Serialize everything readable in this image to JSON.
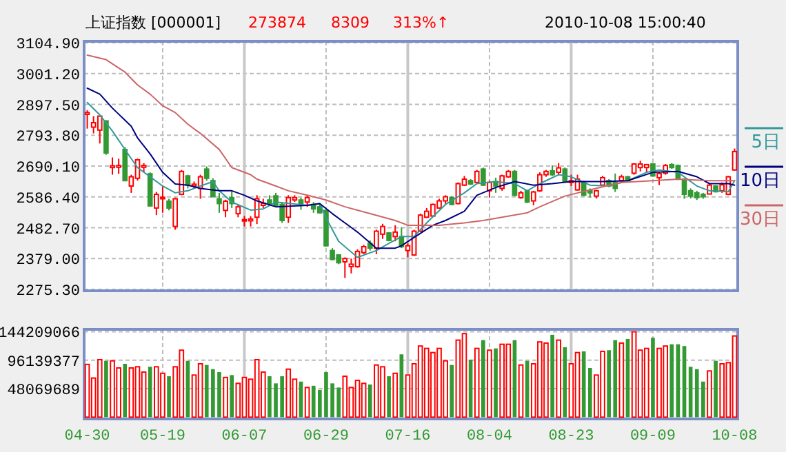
{
  "chart_data": [
    {
      "type": "candlestick",
      "title": "上证指数 [000001]",
      "annotations": [
        "273874",
        "8309",
        "313%↑",
        "2010-10-08 15:00:40"
      ],
      "categories": [
        null,
        null,
        null,
        null,
        null,
        null,
        null,
        null,
        null,
        null,
        null,
        null,
        null,
        null,
        null,
        null,
        null,
        null,
        null,
        null,
        null,
        null,
        null,
        null,
        null,
        null,
        null,
        null,
        null,
        null,
        null,
        null,
        null,
        null,
        null,
        null,
        null,
        null,
        null,
        null,
        null,
        null,
        null,
        null,
        null,
        null,
        null,
        null,
        null,
        null,
        null,
        null,
        null,
        null,
        null,
        null,
        null,
        null,
        null,
        null,
        null,
        null,
        null,
        null,
        null,
        null,
        null,
        null,
        null,
        null,
        null,
        null,
        null,
        null,
        null,
        null,
        null,
        null,
        null,
        null,
        null,
        null,
        null,
        null,
        null,
        null,
        null,
        null,
        null,
        null,
        null,
        null,
        null,
        null,
        null,
        null,
        null,
        null,
        null,
        null,
        null,
        null,
        null,
        null
      ],
      "ohlc": [
        [
          2864,
          2878,
          2816,
          2870
        ],
        [
          2821,
          2858,
          2800,
          2836
        ],
        [
          2811,
          2858,
          2766,
          2858
        ],
        [
          2842,
          2842,
          2728,
          2734
        ],
        [
          2685,
          2719,
          2661,
          2691
        ],
        [
          2686,
          2715,
          2664,
          2692
        ],
        [
          2746,
          2754,
          2641,
          2641
        ],
        [
          2623,
          2661,
          2600,
          2654
        ],
        [
          2649,
          2715,
          2641,
          2711
        ],
        [
          2686,
          2700,
          2669,
          2692
        ],
        [
          2664,
          2669,
          2556,
          2556
        ],
        [
          2549,
          2603,
          2525,
          2595
        ],
        [
          2580,
          2623,
          2533,
          2585
        ],
        [
          2572,
          2580,
          2541,
          2549
        ],
        [
          2487,
          2584,
          2476,
          2580
        ],
        [
          2595,
          2677,
          2592,
          2672
        ],
        [
          2657,
          2661,
          2615,
          2626
        ],
        [
          2623,
          2638,
          2615,
          2629
        ],
        [
          2615,
          2661,
          2580,
          2654
        ],
        [
          2680,
          2689,
          2641,
          2649
        ],
        [
          2641,
          2649,
          2587,
          2587
        ],
        [
          2580,
          2600,
          2533,
          2564
        ],
        [
          2541,
          2577,
          2518,
          2572
        ],
        [
          2584,
          2607,
          2549,
          2564
        ],
        [
          2530,
          2561,
          2518,
          2553
        ],
        [
          2507,
          2522,
          2487,
          2510
        ],
        [
          2506,
          2522,
          2487,
          2512
        ],
        [
          2518,
          2592,
          2495,
          2580
        ],
        [
          2558,
          2580,
          2549,
          2565
        ],
        [
          2576,
          2592,
          2558,
          2564
        ],
        [
          2590,
          2600,
          2553,
          2558
        ],
        [
          2561,
          2569,
          2499,
          2507
        ],
        [
          2518,
          2592,
          2499,
          2584
        ],
        [
          2576,
          2592,
          2569,
          2584
        ],
        [
          2576,
          2584,
          2543,
          2564
        ],
        [
          2569,
          2592,
          2553,
          2584
        ],
        [
          2561,
          2569,
          2533,
          2546
        ],
        [
          2553,
          2561,
          2530,
          2533
        ],
        [
          2541,
          2541,
          2419,
          2422
        ],
        [
          2406,
          2414,
          2373,
          2376
        ],
        [
          2391,
          2394,
          2360,
          2365
        ],
        [
          2368,
          2383,
          2314,
          2379
        ],
        [
          2352,
          2379,
          2329,
          2360
        ],
        [
          2352,
          2410,
          2348,
          2403
        ],
        [
          2399,
          2425,
          2394,
          2419
        ],
        [
          2430,
          2440,
          2406,
          2414
        ],
        [
          2414,
          2476,
          2394,
          2471
        ],
        [
          2461,
          2496,
          2445,
          2487
        ],
        [
          2465,
          2468,
          2437,
          2440
        ],
        [
          2453,
          2491,
          2437,
          2468
        ],
        [
          2453,
          2484,
          2414,
          2419
        ],
        [
          2406,
          2430,
          2383,
          2422
        ],
        [
          2391,
          2476,
          2388,
          2471
        ],
        [
          2471,
          2530,
          2468,
          2525
        ],
        [
          2518,
          2549,
          2515,
          2538
        ],
        [
          2522,
          2564,
          2519,
          2561
        ],
        [
          2549,
          2580,
          2546,
          2573
        ],
        [
          2573,
          2592,
          2561,
          2587
        ],
        [
          2584,
          2589,
          2558,
          2561
        ],
        [
          2564,
          2635,
          2561,
          2631
        ],
        [
          2626,
          2657,
          2623,
          2646
        ],
        [
          2641,
          2646,
          2626,
          2630
        ],
        [
          2635,
          2677,
          2630,
          2672
        ],
        [
          2680,
          2685,
          2623,
          2626
        ],
        [
          2607,
          2641,
          2584,
          2635
        ],
        [
          2638,
          2651,
          2600,
          2623
        ],
        [
          2615,
          2661,
          2607,
          2657
        ],
        [
          2654,
          2677,
          2651,
          2672
        ],
        [
          2672,
          2677,
          2589,
          2592
        ],
        [
          2584,
          2607,
          2580,
          2600
        ],
        [
          2607,
          2610,
          2566,
          2569
        ],
        [
          2573,
          2607,
          2558,
          2603
        ],
        [
          2607,
          2669,
          2603,
          2661
        ],
        [
          2661,
          2677,
          2654,
          2672
        ],
        [
          2674,
          2692,
          2657,
          2661
        ],
        [
          2669,
          2700,
          2661,
          2684
        ],
        [
          2680,
          2685,
          2635,
          2638
        ],
        [
          2635,
          2661,
          2623,
          2641
        ],
        [
          2610,
          2661,
          2607,
          2646
        ],
        [
          2635,
          2641,
          2589,
          2592
        ],
        [
          2607,
          2615,
          2584,
          2600
        ],
        [
          2589,
          2610,
          2581,
          2607
        ],
        [
          2626,
          2657,
          2623,
          2651
        ],
        [
          2641,
          2646,
          2619,
          2623
        ],
        [
          2635,
          2665,
          2603,
          2615
        ],
        [
          2641,
          2661,
          2635,
          2654
        ],
        [
          2654,
          2657,
          2638,
          2641
        ],
        [
          2666,
          2700,
          2661,
          2697
        ],
        [
          2685,
          2708,
          2672,
          2697
        ],
        [
          2685,
          2697,
          2669,
          2695
        ],
        [
          2697,
          2700,
          2654,
          2657
        ],
        [
          2651,
          2669,
          2626,
          2665
        ],
        [
          2666,
          2697,
          2661,
          2692
        ],
        [
          2695,
          2700,
          2681,
          2685
        ],
        [
          2692,
          2695,
          2643,
          2646
        ],
        [
          2646,
          2649,
          2580,
          2595
        ],
        [
          2607,
          2615,
          2581,
          2589
        ],
        [
          2600,
          2607,
          2576,
          2584
        ],
        [
          2595,
          2600,
          2580,
          2587
        ],
        [
          2596,
          2630,
          2595,
          2626
        ],
        [
          2623,
          2626,
          2601,
          2604
        ],
        [
          2607,
          2635,
          2600,
          2627
        ],
        [
          2595,
          2657,
          2592,
          2654
        ],
        [
          2677,
          2749,
          2674,
          2739
        ]
      ],
      "colors": [
        "#ff0000",
        "#ff0000",
        "#ff0000",
        "#339933",
        "#ff0000",
        "#ff0000",
        "#339933",
        "#ff0000",
        "#ff0000",
        "#ff0000",
        "#339933",
        "#ff0000",
        "#ff0000",
        "#339933",
        "#ff0000",
        "#ff0000",
        "#339933",
        "#ff0000",
        "#ff0000",
        "#339933",
        "#339933",
        "#339933",
        "#ff0000",
        "#339933",
        "#ff0000",
        "#ff0000",
        "#ff0000",
        "#ff0000",
        "#ff0000",
        "#339933",
        "#339933",
        "#339933",
        "#ff0000",
        "#ff0000",
        "#339933",
        "#ff0000",
        "#339933",
        "#339933",
        "#339933",
        "#339933",
        "#339933",
        "#ff0000",
        "#ff0000",
        "#ff0000",
        "#ff0000",
        "#339933",
        "#ff0000",
        "#ff0000",
        "#339933",
        "#ff0000",
        "#339933",
        "#ff0000",
        "#ff0000",
        "#ff0000",
        "#ff0000",
        "#ff0000",
        "#ff0000",
        "#ff0000",
        "#339933",
        "#ff0000",
        "#ff0000",
        "#339933",
        "#ff0000",
        "#339933",
        "#ff0000",
        "#339933",
        "#ff0000",
        "#ff0000",
        "#339933",
        "#ff0000",
        "#339933",
        "#ff0000",
        "#ff0000",
        "#ff0000",
        "#339933",
        "#ff0000",
        "#339933",
        "#ff0000",
        "#ff0000",
        "#339933",
        "#339933",
        "#ff0000",
        "#ff0000",
        "#339933",
        "#339933",
        "#ff0000",
        "#339933",
        "#ff0000",
        "#ff0000",
        "#ff0000",
        "#339933",
        "#ff0000",
        "#ff0000",
        "#339933",
        "#339933",
        "#339933",
        "#339933",
        "#339933",
        "#339933",
        "#ff0000",
        "#339933",
        "#ff0000",
        "#ff0000",
        "#ff0000"
      ],
      "series": [
        {
          "name": "5日",
          "type": "line",
          "color": "#339999",
          "values": [
            2904,
            null,
            2862,
            null,
            2808,
            null,
            null,
            2715,
            2685,
            null,
            2654,
            null,
            2623,
            null,
            2600,
            null,
            2607,
            null,
            2623,
            null,
            2638,
            2607,
            null,
            2569,
            null,
            null,
            2542,
            null,
            2546,
            null,
            2569,
            null,
            null,
            null,
            null,
            2558,
            null,
            2564,
            2515,
            null,
            2437,
            null,
            null,
            2383,
            null,
            null,
            2406,
            null,
            2430,
            null,
            2453,
            null,
            2453,
            null,
            2499,
            null,
            null,
            2561,
            null,
            null,
            2600,
            null,
            2631,
            null,
            null,
            2638,
            null,
            null,
            2631,
            null,
            2607,
            null,
            2631,
            null,
            null,
            2661,
            null,
            2654,
            null,
            null,
            2626,
            null,
            null,
            2623,
            null,
            null,
            2641,
            null,
            null,
            2669,
            null,
            2677,
            null,
            null,
            2669,
            null,
            null,
            2623,
            null,
            2607,
            null,
            null,
            2604,
            2641
          ]
        },
        {
          "name": "10日",
          "type": "line",
          "color": "#000080",
          "values": [
            2952,
            null,
            2932,
            null,
            2885,
            null,
            null,
            2824,
            2785,
            null,
            2731,
            null,
            2669,
            null,
            2630,
            null,
            2626,
            null,
            2615,
            null,
            null,
            2607,
            null,
            2607,
            null,
            2592,
            null,
            2573,
            null,
            null,
            2553,
            null,
            null,
            null,
            null,
            2558,
            null,
            2564,
            null,
            2530,
            null,
            2499,
            null,
            2468,
            null,
            null,
            2414,
            null,
            null,
            2414,
            2422,
            null,
            2450,
            null,
            null,
            2491,
            null,
            2507,
            null,
            null,
            2538,
            null,
            2592,
            null,
            null,
            2618,
            null,
            null,
            2638,
            null,
            null,
            2626,
            null,
            null,
            2631,
            null,
            null,
            2638,
            null,
            null,
            null,
            null,
            2638,
            null,
            null,
            null,
            2641,
            null,
            null,
            null,
            2669,
            null,
            null,
            null,
            2672,
            null,
            null,
            2654,
            null,
            2631,
            null,
            null,
            2631,
            2626
          ]
        },
        {
          "name": "30日",
          "type": "line",
          "color": "#cc6666",
          "values": [
            3063,
            null,
            null,
            3048,
            null,
            null,
            3006,
            null,
            2963,
            null,
            2932,
            null,
            2893,
            null,
            2870,
            null,
            2831,
            null,
            2800,
            null,
            null,
            2746,
            null,
            2685,
            null,
            null,
            2661,
            2646,
            null,
            null,
            2623,
            null,
            2607,
            null,
            null,
            2592,
            null,
            null,
            2576,
            null,
            null,
            2553,
            null,
            null,
            null,
            2530,
            null,
            null,
            null,
            2507,
            null,
            2491,
            null,
            null,
            null,
            null,
            2491,
            null,
            null,
            null,
            2499,
            null,
            null,
            2507,
            null,
            null,
            2518,
            null,
            null,
            null,
            2533,
            null,
            2553,
            null,
            null,
            null,
            2589,
            null,
            null,
            null,
            2610,
            null,
            null,
            null,
            null,
            2635,
            null,
            null,
            null,
            null,
            2641,
            null,
            null,
            null,
            2646,
            null,
            null,
            null,
            null,
            2641,
            null,
            null,
            null,
            2641
          ]
        }
      ],
      "ylim": [
        2275.3,
        3104.9
      ],
      "yticks": [
        {
          "value": 2275.3,
          "label": "2275.30"
        },
        {
          "value": 2379,
          "label": "2379.00"
        },
        {
          "value": 2482.7,
          "label": "2482.70"
        },
        {
          "value": 2586.4,
          "label": "2586.40"
        },
        {
          "value": 2690.1,
          "label": "2690.10"
        },
        {
          "value": 2793.8,
          "label": "2793.80"
        },
        {
          "value": 2897.5,
          "label": "2897.50"
        },
        {
          "value": 3001.2,
          "label": "3001.20"
        },
        {
          "value": 3104.9,
          "label": "3104.90"
        }
      ],
      "grid": true,
      "legend": "right",
      "tick_labels": "y"
    },
    {
      "type": "bar",
      "categories": [
        "04-30",
        null,
        null,
        null,
        null,
        null,
        null,
        null,
        null,
        null,
        null,
        null,
        "05-19",
        null,
        null,
        null,
        null,
        null,
        null,
        null,
        null,
        null,
        null,
        null,
        null,
        "06-07",
        null,
        null,
        null,
        null,
        null,
        null,
        null,
        null,
        null,
        null,
        null,
        null,
        "06-29",
        null,
        null,
        null,
        null,
        null,
        null,
        null,
        null,
        null,
        null,
        null,
        null,
        "07-16",
        null,
        null,
        null,
        null,
        null,
        null,
        null,
        null,
        null,
        null,
        null,
        null,
        "08-04",
        null,
        null,
        null,
        null,
        null,
        null,
        null,
        null,
        null,
        null,
        null,
        null,
        "08-23",
        null,
        null,
        null,
        null,
        null,
        null,
        null,
        null,
        null,
        null,
        null,
        null,
        "09-09",
        null,
        null,
        null,
        null,
        null,
        null,
        null,
        null,
        null,
        null,
        null,
        null,
        "10-08"
      ],
      "values": [
        89000000,
        66000000,
        97000000,
        95000000,
        95000000,
        83000000,
        90000000,
        83000000,
        85000000,
        76000000,
        85000000,
        85000000,
        74000000,
        69000000,
        85000000,
        113000000,
        95000000,
        71000000,
        90000000,
        88000000,
        81000000,
        76000000,
        67000000,
        71000000,
        57000000,
        67000000,
        64000000,
        97000000,
        76000000,
        69000000,
        57000000,
        69000000,
        81000000,
        64000000,
        60000000,
        50000000,
        53000000,
        46000000,
        76000000,
        57000000,
        50000000,
        69000000,
        50000000,
        62000000,
        57000000,
        55000000,
        88000000,
        85000000,
        69000000,
        74000000,
        106000000,
        71000000,
        90000000,
        120000000,
        116000000,
        109000000,
        116000000,
        95000000,
        88000000,
        130000000,
        141000000,
        97000000,
        116000000,
        130000000,
        113000000,
        116000000,
        123000000,
        123000000,
        130000000,
        88000000,
        95000000,
        90000000,
        127000000,
        125000000,
        139000000,
        130000000,
        118000000,
        90000000,
        109000000,
        111000000,
        83000000,
        71000000,
        111000000,
        113000000,
        130000000,
        125000000,
        132000000,
        144000000,
        113000000,
        116000000,
        134000000,
        116000000,
        120000000,
        123000000,
        123000000,
        120000000,
        85000000,
        81000000,
        60000000,
        78000000,
        95000000,
        90000000,
        92000000,
        137000000
      ],
      "colors": [
        "#ff0000",
        "#ff0000",
        "#ff0000",
        "#339933",
        "#ff0000",
        "#ff0000",
        "#339933",
        "#ff0000",
        "#ff0000",
        "#ff0000",
        "#339933",
        "#ff0000",
        "#ff0000",
        "#339933",
        "#ff0000",
        "#ff0000",
        "#339933",
        "#ff0000",
        "#ff0000",
        "#339933",
        "#339933",
        "#339933",
        "#ff0000",
        "#339933",
        "#ff0000",
        "#ff0000",
        "#ff0000",
        "#ff0000",
        "#ff0000",
        "#339933",
        "#339933",
        "#339933",
        "#ff0000",
        "#ff0000",
        "#339933",
        "#ff0000",
        "#339933",
        "#339933",
        "#339933",
        "#339933",
        "#339933",
        "#ff0000",
        "#ff0000",
        "#ff0000",
        "#ff0000",
        "#339933",
        "#ff0000",
        "#ff0000",
        "#339933",
        "#ff0000",
        "#339933",
        "#ff0000",
        "#ff0000",
        "#ff0000",
        "#ff0000",
        "#ff0000",
        "#ff0000",
        "#ff0000",
        "#339933",
        "#ff0000",
        "#ff0000",
        "#339933",
        "#ff0000",
        "#339933",
        "#ff0000",
        "#339933",
        "#ff0000",
        "#ff0000",
        "#339933",
        "#ff0000",
        "#339933",
        "#ff0000",
        "#ff0000",
        "#ff0000",
        "#339933",
        "#ff0000",
        "#339933",
        "#ff0000",
        "#ff0000",
        "#339933",
        "#339933",
        "#ff0000",
        "#ff0000",
        "#339933",
        "#339933",
        "#ff0000",
        "#339933",
        "#ff0000",
        "#ff0000",
        "#ff0000",
        "#339933",
        "#ff0000",
        "#ff0000",
        "#339933",
        "#339933",
        "#339933",
        "#339933",
        "#339933",
        "#339933",
        "#ff0000",
        "#339933",
        "#ff0000",
        "#ff0000",
        "#ff0000"
      ],
      "ylim": [
        0,
        144209066
      ],
      "yticks": [
        48069689,
        96139377,
        144209066
      ],
      "grid": true
    }
  ]
}
